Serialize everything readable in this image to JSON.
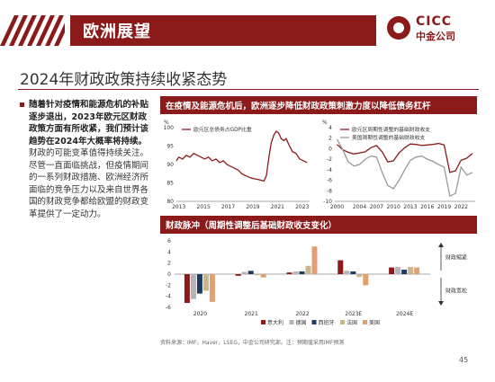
{
  "header": {
    "section_title": "欧洲展望",
    "logo_en": "CICC",
    "logo_cn": "中金公司",
    "brand_color": "#8b1a1a"
  },
  "subtitle": "2024年财政政策持续收紧态势",
  "bullet": {
    "bold_text": "随着针对疫情和能源危机的补贴逐步退出，2023年欧元区财政政策方面有所收紧，我们预计该趋势在2024年大概率将持续。",
    "normal_text": "财政的可能变革值得持续关注。尽管一直面临挑战，但疫情期间的一系列财政措施、欧洲经济所面临的竞争压力以及来自世界各国的财政竞争都给欧盟的财政变革提供了一定动力。"
  },
  "top_panel": {
    "title": "在疫情及能源危机后，欧洲逐步降低财政政策刺激力度以降低债务杠杆"
  },
  "bottom_panel": {
    "title": "财政脉冲（周期性调整后基础财政收支变化）"
  },
  "source": "资料来源：IMF，Haver，LSEG，中金公司研究部。注：预期值采用IMF预测",
  "page_number": "45",
  "chart_data": [
    {
      "type": "line",
      "unit_label": "%",
      "series": [
        {
          "name": "欧元区总债务占GDP比重",
          "color": "#8b1a1a",
          "x": [
            2012.8,
            2013.0,
            2013.3,
            2013.6,
            2013.9,
            2014.2,
            2014.5,
            2014.8,
            2015.1,
            2015.4,
            2015.7,
            2016.0,
            2016.3,
            2016.6,
            2016.9,
            2017.2,
            2017.5,
            2017.8,
            2018.1,
            2018.4,
            2018.7,
            2019.0,
            2019.3,
            2019.6,
            2019.9,
            2020.1,
            2020.3,
            2020.5,
            2020.7,
            2020.9,
            2021.1,
            2021.3,
            2021.5,
            2021.7,
            2021.9,
            2022.2,
            2022.5,
            2022.8,
            2023.1,
            2023.4
          ],
          "y": [
            91,
            92,
            91.5,
            92.5,
            92,
            93,
            92.5,
            92,
            91.5,
            92,
            91,
            91.5,
            90.5,
            91,
            90,
            89.5,
            89,
            88.5,
            87.5,
            87,
            86.5,
            86.2,
            86,
            85.8,
            85.5,
            87,
            92,
            96,
            98,
            99,
            98.5,
            97,
            96.5,
            97,
            95.5,
            93.5,
            93,
            91.5,
            91,
            90.5
          ]
        }
      ],
      "ylim": [
        80,
        100
      ],
      "yticks": [
        80,
        85,
        90,
        95,
        100
      ],
      "xticks": [
        "2013",
        "2015",
        "2017",
        "2019",
        "2021",
        "2023"
      ],
      "xlim": [
        2012.8,
        2023.6
      ]
    },
    {
      "type": "line",
      "unit_label": "%",
      "series": [
        {
          "name": "欧元区周期性调整的基础财政收支",
          "color": "#8b1a1a",
          "x": [
            2000,
            2001,
            2002,
            2003,
            2004,
            2005,
            2006,
            2007,
            2008,
            2009,
            2010,
            2011,
            2012,
            2013,
            2014,
            2015,
            2016,
            2017,
            2018,
            2019,
            2020,
            2021,
            2022,
            2023,
            2024
          ],
          "y": [
            0.8,
            -0.2,
            -0.7,
            -1,
            -0.8,
            -0.6,
            0.2,
            0.6,
            -0.6,
            -2.5,
            -2.3,
            -0.8,
            0.2,
            0.9,
            0.8,
            0.6,
            0.7,
            0.8,
            1.0,
            0.7,
            -4.5,
            -4.2,
            -2.2,
            -1.8,
            -0.9
          ]
        },
        {
          "name": "美国周期性调整的基础财政收支",
          "color": "#999999",
          "x": [
            2000,
            2001,
            2002,
            2003,
            2004,
            2005,
            2006,
            2007,
            2008,
            2009,
            2010,
            2011,
            2012,
            2013,
            2014,
            2015,
            2016,
            2017,
            2018,
            2019,
            2020,
            2021,
            2022,
            2023,
            2024
          ],
          "y": [
            1.8,
            -0.2,
            -2.5,
            -3.3,
            -3,
            -2,
            -1.4,
            -1.6,
            -4.5,
            -7,
            -7.6,
            -6,
            -4,
            -2.2,
            -1.6,
            -1.4,
            -2,
            -2.4,
            -3,
            -3.5,
            -9,
            -8.5,
            -3.5,
            -5,
            -4.5
          ]
        }
      ],
      "ylim": [
        -10,
        4
      ],
      "yticks": [
        -10,
        -8,
        -6,
        -4,
        -2,
        0,
        2,
        4
      ],
      "xticks": [
        "2000",
        "2004",
        "2007",
        "2010",
        "2013",
        "2016",
        "2019",
        "2022"
      ],
      "xlim": [
        1999.6,
        2024.5
      ]
    },
    {
      "type": "bar",
      "categories": [
        "2020",
        "2021",
        "2022",
        "2023E",
        "2024E"
      ],
      "series": [
        {
          "name": "意大利",
          "color": "#8b1a1a",
          "values": [
            -5.2,
            -0.3,
            0.3,
            2.5,
            1.2
          ]
        },
        {
          "name": "德国",
          "color": "#b5b5b5",
          "values": [
            -4.5,
            0.4,
            0.5,
            0.6,
            1.3
          ]
        },
        {
          "name": "西班牙",
          "color": "#1f3a5f",
          "values": [
            -3.5,
            0.6,
            0.5,
            0.5,
            0.8
          ]
        },
        {
          "name": "法国",
          "color": "#c8b68c",
          "values": [
            -3.0,
            -0.2,
            1.5,
            -0.5,
            1.3
          ]
        },
        {
          "name": "美国",
          "color": "#e0a070",
          "values": [
            -5.0,
            -0.6,
            5.0,
            -2.0,
            1.2
          ]
        }
      ],
      "ylim": [
        -6,
        6
      ],
      "yticks": [
        -6,
        -4,
        -2,
        0,
        2,
        4,
        6
      ],
      "annotations": {
        "up": "财政缩紧",
        "down": "财政宽松"
      }
    }
  ]
}
